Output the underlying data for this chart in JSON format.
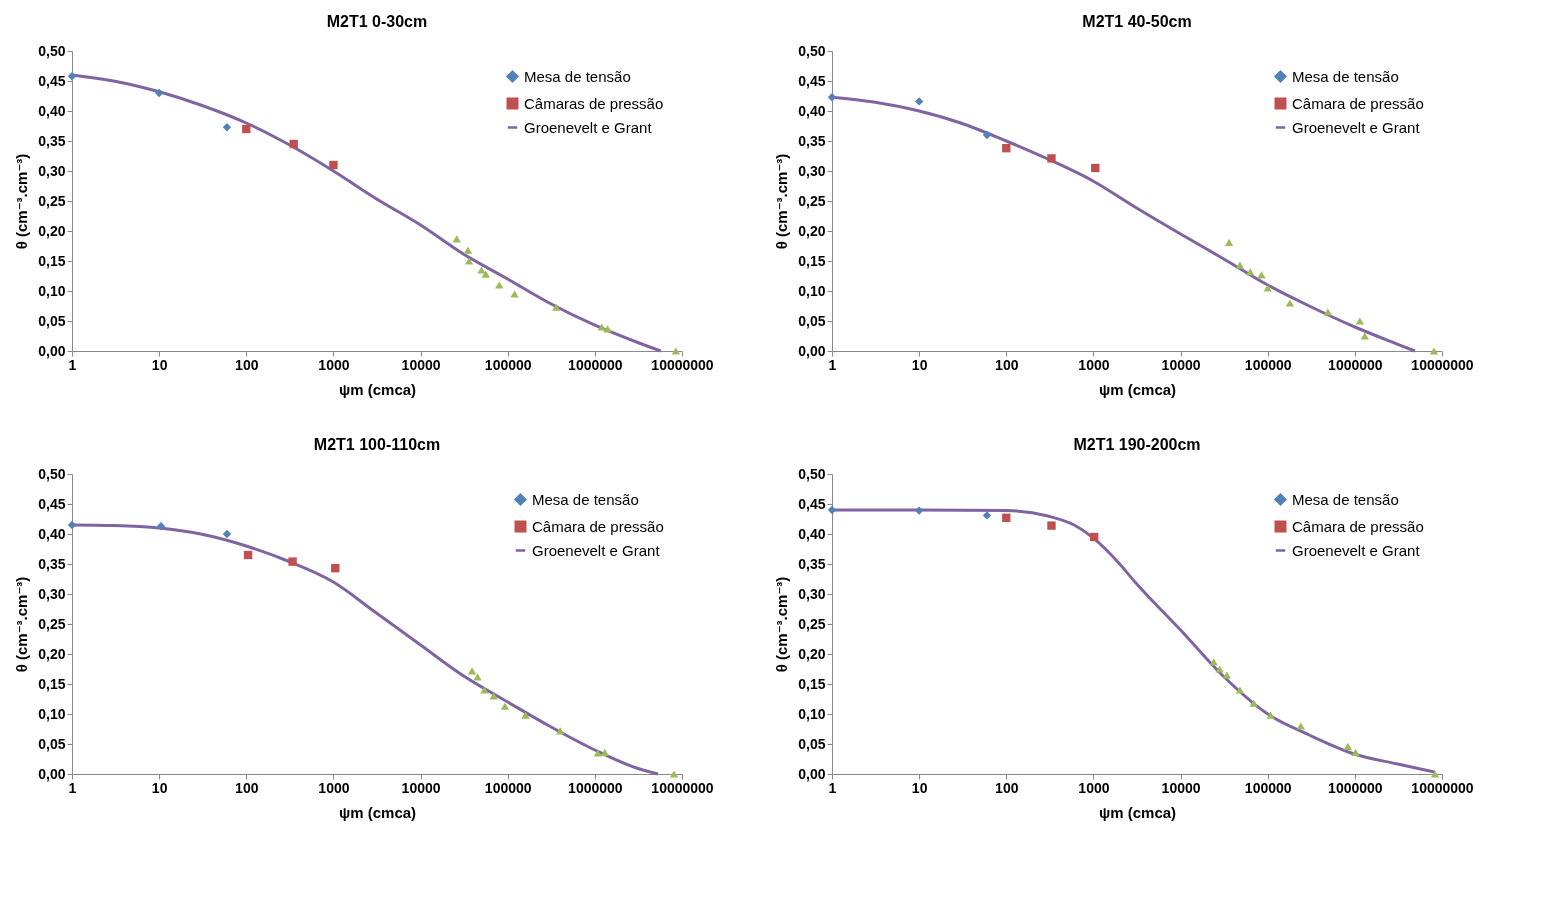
{
  "chart_data": [
    {
      "type": "scatter",
      "title": "M2T1 0-30cm",
      "xlabel": "ψm (cmca)",
      "ylabel": "θ (cm⁻³.cm⁻³)",
      "log": "x",
      "grid": false,
      "legend": "top right",
      "xlim": [
        1,
        10000000
      ],
      "xticks": [
        1,
        10,
        100,
        1000,
        10000,
        100000,
        1000000,
        10000000
      ],
      "ylim": [
        0,
        0.5
      ],
      "yticks": [
        {
          "value": 0,
          "label": "0,00"
        },
        {
          "value": 0.05,
          "label": "0,05"
        },
        {
          "value": 0.1,
          "label": "0,10"
        },
        {
          "value": 0.15,
          "label": "0,15"
        },
        {
          "value": 0.2,
          "label": "0,20"
        },
        {
          "value": 0.25,
          "label": "0,25"
        },
        {
          "value": 0.3,
          "label": "0,30"
        },
        {
          "value": 0.35,
          "label": "0,35"
        },
        {
          "value": 0.4,
          "label": "0,40"
        },
        {
          "value": 0.45,
          "label": "0,45"
        },
        {
          "value": 0.5,
          "label": "0,50"
        }
      ],
      "series": [
        {
          "name": "Mesa de tensão",
          "type": "scatter",
          "marker": "diamond",
          "color": "#4f81bd",
          "x": [
            1,
            10,
            60
          ],
          "values": [
            0.458,
            0.43,
            0.373
          ]
        },
        {
          "name": "Câmaras de pressão",
          "type": "scatter",
          "marker": "square",
          "color": "#c0504d",
          "x": [
            100,
            350,
            1000
          ],
          "values": [
            0.37,
            0.345,
            0.31
          ]
        },
        {
          "type": "scatter",
          "marker": "triangle",
          "color": "#9bbb59",
          "x": [
            26000,
            35000,
            36000,
            50000,
            56000,
            80000,
            120000,
            360000,
            1200000,
            1400000,
            8500000
          ],
          "values": [
            0.187,
            0.168,
            0.15,
            0.135,
            0.128,
            0.11,
            0.095,
            0.073,
            0.04,
            0.037,
            0
          ]
        },
        {
          "name": "Groenevelt e Grant",
          "type": "line",
          "marker": "none",
          "color": "#8064a2",
          "x": [
            1,
            3,
            10,
            30,
            100,
            300,
            1000,
            3000,
            10000,
            30000,
            100000,
            300000,
            1000000,
            3000000,
            5700000
          ],
          "values": [
            0.46,
            0.45,
            0.432,
            0.41,
            0.38,
            0.345,
            0.3,
            0.255,
            0.21,
            0.163,
            0.12,
            0.08,
            0.043,
            0.015,
            0
          ]
        }
      ]
    },
    {
      "type": "scatter",
      "title": "M2T1 40-50cm",
      "xlabel": "ψm (cmca)",
      "ylabel": "θ (cm⁻³.cm⁻³)",
      "log": "x",
      "grid": false,
      "legend": "top right",
      "xlim": [
        1,
        10000000
      ],
      "xticks": [
        1,
        10,
        100,
        1000,
        10000,
        100000,
        1000000,
        10000000
      ],
      "ylim": [
        0,
        0.5
      ],
      "yticks": [
        {
          "value": 0,
          "label": "0,00"
        },
        {
          "value": 0.05,
          "label": "0,05"
        },
        {
          "value": 0.1,
          "label": "0,10"
        },
        {
          "value": 0.15,
          "label": "0,15"
        },
        {
          "value": 0.2,
          "label": "0,20"
        },
        {
          "value": 0.25,
          "label": "0,25"
        },
        {
          "value": 0.3,
          "label": "0,30"
        },
        {
          "value": 0.35,
          "label": "0,35"
        },
        {
          "value": 0.4,
          "label": "0,40"
        },
        {
          "value": 0.45,
          "label": "0,45"
        },
        {
          "value": 0.5,
          "label": "0,50"
        }
      ],
      "series": [
        {
          "name": "Mesa de tensão",
          "type": "scatter",
          "marker": "diamond",
          "color": "#4f81bd",
          "x": [
            1,
            10,
            60
          ],
          "values": [
            0.423,
            0.416,
            0.36
          ]
        },
        {
          "name": "Câmara de pressão",
          "type": "scatter",
          "marker": "square",
          "color": "#c0504d",
          "x": [
            100,
            330,
            1050
          ],
          "values": [
            0.338,
            0.321,
            0.305
          ]
        },
        {
          "type": "scatter",
          "marker": "triangle",
          "color": "#9bbb59",
          "x": [
            36000,
            48000,
            63000,
            85000,
            100000,
            180000,
            490000,
            1140000,
            1300000,
            8100000
          ],
          "values": [
            0.181,
            0.143,
            0.132,
            0.127,
            0.105,
            0.08,
            0.065,
            0.05,
            0.025,
            0
          ]
        },
        {
          "name": "Groenevelt e Grant",
          "type": "line",
          "marker": "none",
          "color": "#8064a2",
          "x": [
            1,
            3,
            10,
            30,
            100,
            300,
            1000,
            3000,
            10000,
            30000,
            100000,
            300000,
            1000000,
            3000000,
            4900000
          ],
          "values": [
            0.423,
            0.415,
            0.4,
            0.38,
            0.35,
            0.32,
            0.283,
            0.24,
            0.195,
            0.155,
            0.11,
            0.075,
            0.04,
            0.012,
            0
          ]
        }
      ]
    },
    {
      "type": "scatter",
      "title": "M2T1 100-110cm",
      "xlabel": "ψm (cmca)",
      "ylabel": "θ (cm⁻³.cm⁻³)",
      "log": "x",
      "grid": false,
      "legend": "top right",
      "xlim": [
        1,
        10000000
      ],
      "xticks": [
        1,
        10,
        100,
        1000,
        10000,
        100000,
        1000000,
        10000000
      ],
      "ylim": [
        0,
        0.5
      ],
      "yticks": [
        {
          "value": 0,
          "label": "0,00"
        },
        {
          "value": 0.05,
          "label": "0,05"
        },
        {
          "value": 0.1,
          "label": "0,10"
        },
        {
          "value": 0.15,
          "label": "0,15"
        },
        {
          "value": 0.2,
          "label": "0,20"
        },
        {
          "value": 0.25,
          "label": "0,25"
        },
        {
          "value": 0.3,
          "label": "0,30"
        },
        {
          "value": 0.35,
          "label": "0,35"
        },
        {
          "value": 0.4,
          "label": "0,40"
        },
        {
          "value": 0.45,
          "label": "0,45"
        },
        {
          "value": 0.5,
          "label": "0,50"
        }
      ],
      "series": [
        {
          "name": "Mesa de tensão",
          "type": "scatter",
          "marker": "diamond",
          "color": "#4f81bd",
          "x": [
            1,
            10.5,
            60
          ],
          "values": [
            0.415,
            0.413,
            0.4
          ]
        },
        {
          "name": "Câmara de pressão",
          "type": "scatter",
          "marker": "square",
          "color": "#c0504d",
          "x": [
            105,
            340,
            1050
          ],
          "values": [
            0.365,
            0.354,
            0.343
          ]
        },
        {
          "type": "scatter",
          "marker": "triangle",
          "color": "#9bbb59",
          "x": [
            39000,
            45000,
            54000,
            69000,
            93000,
            160000,
            400000,
            1080000,
            1300000,
            8100000
          ],
          "values": [
            0.172,
            0.162,
            0.14,
            0.13,
            0.113,
            0.098,
            0.072,
            0.035,
            0.036,
            0
          ]
        },
        {
          "name": "Groenevelt e Grant",
          "type": "line",
          "marker": "none",
          "color": "#8064a2",
          "x": [
            1,
            3,
            10,
            30,
            100,
            300,
            1000,
            3000,
            10000,
            30000,
            100000,
            300000,
            1000000,
            3000000,
            5300000
          ],
          "values": [
            0.415,
            0.414,
            0.41,
            0.4,
            0.38,
            0.355,
            0.32,
            0.27,
            0.215,
            0.165,
            0.12,
            0.08,
            0.04,
            0.01,
            0
          ]
        }
      ]
    },
    {
      "type": "scatter",
      "title": "M2T1 190-200cm",
      "xlabel": "ψm (cmca)",
      "ylabel": "θ (cm⁻³.cm⁻³)",
      "log": "x",
      "grid": false,
      "legend": "top right",
      "xlim": [
        1,
        10000000
      ],
      "xticks": [
        1,
        10,
        100,
        1000,
        10000,
        100000,
        1000000,
        10000000
      ],
      "ylim": [
        0,
        0.5
      ],
      "yticks": [
        {
          "value": 0,
          "label": "0,00"
        },
        {
          "value": 0.05,
          "label": "0,05"
        },
        {
          "value": 0.1,
          "label": "0,10"
        },
        {
          "value": 0.15,
          "label": "0,15"
        },
        {
          "value": 0.2,
          "label": "0,20"
        },
        {
          "value": 0.25,
          "label": "0,25"
        },
        {
          "value": 0.3,
          "label": "0,30"
        },
        {
          "value": 0.35,
          "label": "0,35"
        },
        {
          "value": 0.4,
          "label": "0,40"
        },
        {
          "value": 0.45,
          "label": "0,45"
        },
        {
          "value": 0.5,
          "label": "0,50"
        }
      ],
      "series": [
        {
          "name": "Mesa de tensão",
          "type": "scatter",
          "marker": "diamond",
          "color": "#4f81bd",
          "x": [
            1,
            10,
            60
          ],
          "values": [
            0.44,
            0.439,
            0.431
          ]
        },
        {
          "name": "Câmara de pressão",
          "type": "scatter",
          "marker": "square",
          "color": "#c0504d",
          "x": [
            100,
            330,
            1020
          ],
          "values": [
            0.427,
            0.414,
            0.395
          ]
        },
        {
          "type": "scatter",
          "marker": "triangle",
          "color": "#9bbb59",
          "x": [
            24000,
            28000,
            34000,
            48000,
            69000,
            108000,
            240000,
            830000,
            1020000,
            8300000
          ],
          "values": [
            0.187,
            0.175,
            0.165,
            0.14,
            0.118,
            0.098,
            0.08,
            0.046,
            0.036,
            0
          ]
        },
        {
          "name": "Groenevelt e Grant",
          "type": "line",
          "marker": "none",
          "color": "#8064a2",
          "x": [
            1,
            10,
            100,
            300,
            600,
            1000,
            2000,
            3000,
            10000,
            30000,
            100000,
            300000,
            1000000,
            3000000,
            8300000
          ],
          "values": [
            0.44,
            0.44,
            0.439,
            0.43,
            0.415,
            0.393,
            0.35,
            0.32,
            0.24,
            0.165,
            0.1,
            0.065,
            0.033,
            0.017,
            0.003
          ]
        }
      ]
    }
  ]
}
